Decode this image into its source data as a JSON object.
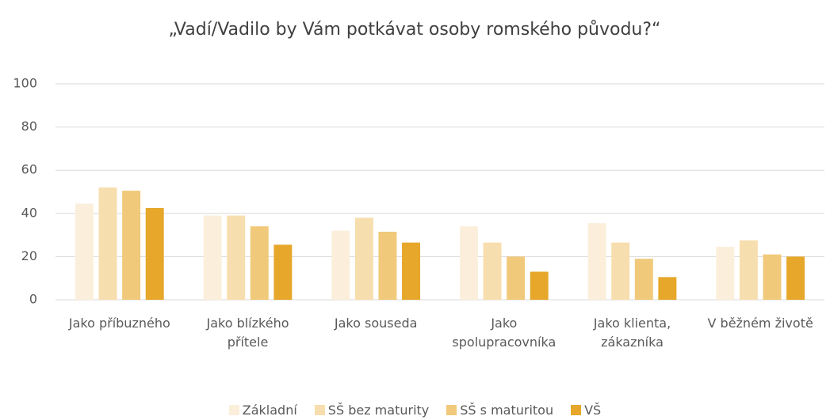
{
  "chart_data": {
    "type": "bar",
    "title": "„Vadí/Vadilo by Vám potkávat osoby romského původu?“",
    "categories": [
      "Jako příbuzného",
      "Jako blízkého přítele",
      "Jako souseda",
      "Jako spolupracovníka",
      "Jako klienta, zákazníka",
      "V běžném životě"
    ],
    "series": [
      {
        "name": "Základní",
        "color": "#fbefdc",
        "values": [
          44.5,
          39,
          32,
          34,
          35.5,
          24.5
        ]
      },
      {
        "name": "SŠ bez maturity",
        "color": "#f7deae",
        "values": [
          52,
          39,
          38,
          26.5,
          26.5,
          27.5
        ]
      },
      {
        "name": "SŠ s maturitou",
        "color": "#f1c97a",
        "values": [
          50.5,
          34,
          31.5,
          20,
          19,
          21
        ]
      },
      {
        "name": "VŠ",
        "color": "#e6a72a",
        "values": [
          42.5,
          25.5,
          26.5,
          13,
          10.5,
          20
        ]
      }
    ],
    "ylim": [
      0,
      100
    ],
    "yticks": [
      0,
      20,
      40,
      60,
      80,
      100
    ],
    "grid": true,
    "legend": "bottom"
  }
}
